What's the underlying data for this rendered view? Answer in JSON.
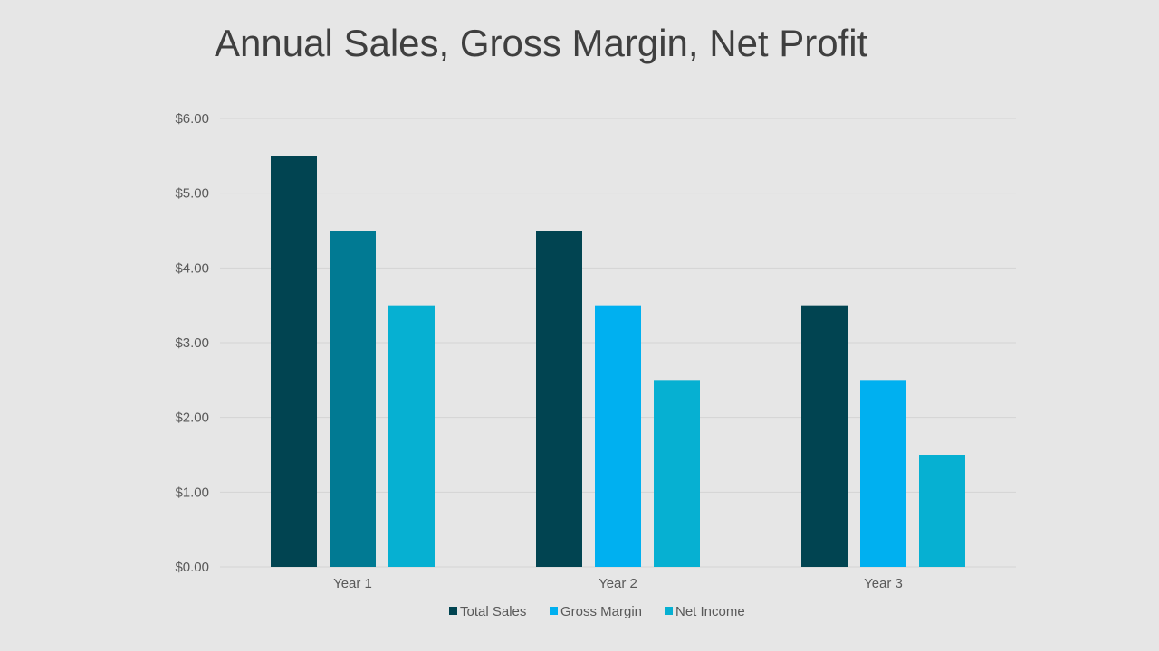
{
  "slide": {
    "title": "Annual Sales, Gross Margin, Net Profit"
  },
  "colors": {
    "background": "#e6e6e6",
    "gridline": "#d4d4d4",
    "text": "#595959"
  },
  "chart_data": {
    "type": "bar",
    "title": "Annual Sales, Gross Margin, Net Profit",
    "xlabel": "",
    "ylabel": "",
    "categories": [
      "Year 1",
      "Year 2",
      "Year 3"
    ],
    "ylim": [
      0,
      6
    ],
    "yticks": [
      0,
      1,
      2,
      3,
      4,
      5,
      6
    ],
    "ytick_labels": [
      "$0.00",
      "$1.00",
      "$2.00",
      "$3.00",
      "$4.00",
      "$5.00",
      "$6.00"
    ],
    "grid": true,
    "legend_position": "bottom",
    "series": [
      {
        "name": "Total Sales",
        "values": [
          5.5,
          4.5,
          3.5
        ],
        "color": "#014451",
        "point_colors": [
          "#014451",
          "#014451",
          "#014451"
        ]
      },
      {
        "name": "Gross Margin",
        "values": [
          4.5,
          3.5,
          2.5
        ],
        "color": "#00b0f0",
        "point_colors": [
          "#017a93",
          "#00b0f0",
          "#00b0f0"
        ]
      },
      {
        "name": "Net Income",
        "values": [
          3.5,
          2.5,
          1.5
        ],
        "color": "#06b0d2",
        "point_colors": [
          "#06b0d2",
          "#06b0d2",
          "#06b0d2"
        ]
      }
    ]
  }
}
